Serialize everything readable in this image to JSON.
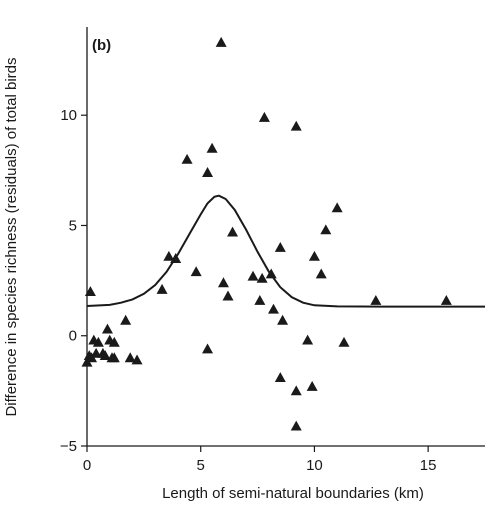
{
  "chart_data": {
    "type": "scatter",
    "panel_label": "(b)",
    "xlabel": "Length of semi-natural boundaries  (km)",
    "ylabel": "Difference in species richness (residuals) of total birds",
    "xlim": [
      0,
      17.5
    ],
    "ylim": [
      -5,
      14
    ],
    "xticks": [
      0,
      5,
      10,
      15
    ],
    "yticks": [
      -5,
      0,
      5,
      10
    ],
    "grid": false,
    "legend": "none",
    "marker": "triangle",
    "colors": {
      "marker": "#1a1a1a",
      "curve": "#1a1a1a",
      "axis": "#1a1a1a"
    },
    "points": [
      {
        "x": 0.0,
        "y": -1.2
      },
      {
        "x": 0.1,
        "y": -0.9
      },
      {
        "x": 0.15,
        "y": 2.0
      },
      {
        "x": 0.2,
        "y": -1.0
      },
      {
        "x": 0.3,
        "y": -0.2
      },
      {
        "x": 0.4,
        "y": -0.8
      },
      {
        "x": 0.5,
        "y": -0.3
      },
      {
        "x": 0.7,
        "y": -0.8
      },
      {
        "x": 0.8,
        "y": -0.9
      },
      {
        "x": 0.9,
        "y": 0.3
      },
      {
        "x": 1.0,
        "y": -0.2
      },
      {
        "x": 1.1,
        "y": -1.0
      },
      {
        "x": 1.2,
        "y": -1.0
      },
      {
        "x": 1.2,
        "y": -0.3
      },
      {
        "x": 1.7,
        "y": 0.7
      },
      {
        "x": 1.9,
        "y": -1.0
      },
      {
        "x": 2.2,
        "y": -1.1
      },
      {
        "x": 3.3,
        "y": 2.1
      },
      {
        "x": 3.6,
        "y": 3.6
      },
      {
        "x": 3.9,
        "y": 3.5
      },
      {
        "x": 4.4,
        "y": 8.0
      },
      {
        "x": 4.8,
        "y": 2.9
      },
      {
        "x": 5.3,
        "y": -0.6
      },
      {
        "x": 5.3,
        "y": 7.4
      },
      {
        "x": 5.5,
        "y": 8.5
      },
      {
        "x": 5.9,
        "y": 13.3
      },
      {
        "x": 6.0,
        "y": 2.4
      },
      {
        "x": 6.2,
        "y": 1.8
      },
      {
        "x": 6.4,
        "y": 4.7
      },
      {
        "x": 7.3,
        "y": 2.7
      },
      {
        "x": 7.6,
        "y": 1.6
      },
      {
        "x": 7.7,
        "y": 2.6
      },
      {
        "x": 7.8,
        "y": 9.9
      },
      {
        "x": 8.1,
        "y": 2.8
      },
      {
        "x": 8.2,
        "y": 1.2
      },
      {
        "x": 8.5,
        "y": 4.0
      },
      {
        "x": 8.5,
        "y": -1.9
      },
      {
        "x": 8.6,
        "y": 0.7
      },
      {
        "x": 9.2,
        "y": 9.5
      },
      {
        "x": 9.2,
        "y": -2.5
      },
      {
        "x": 9.2,
        "y": -4.1
      },
      {
        "x": 9.7,
        "y": -0.2
      },
      {
        "x": 9.9,
        "y": -2.3
      },
      {
        "x": 10.0,
        "y": 3.6
      },
      {
        "x": 10.3,
        "y": 2.8
      },
      {
        "x": 10.5,
        "y": 4.8
      },
      {
        "x": 11.0,
        "y": 5.8
      },
      {
        "x": 11.3,
        "y": -0.3
      },
      {
        "x": 12.7,
        "y": 1.6
      },
      {
        "x": 15.8,
        "y": 1.6
      }
    ],
    "curve": [
      {
        "x": 0.0,
        "y": 1.35
      },
      {
        "x": 1.0,
        "y": 1.4
      },
      {
        "x": 1.5,
        "y": 1.5
      },
      {
        "x": 2.0,
        "y": 1.65
      },
      {
        "x": 2.5,
        "y": 1.9
      },
      {
        "x": 3.0,
        "y": 2.3
      },
      {
        "x": 3.5,
        "y": 2.9
      },
      {
        "x": 4.0,
        "y": 3.7
      },
      {
        "x": 4.5,
        "y": 4.6
      },
      {
        "x": 5.0,
        "y": 5.5
      },
      {
        "x": 5.3,
        "y": 6.0
      },
      {
        "x": 5.6,
        "y": 6.3
      },
      {
        "x": 5.8,
        "y": 6.35
      },
      {
        "x": 6.1,
        "y": 6.2
      },
      {
        "x": 6.5,
        "y": 5.7
      },
      {
        "x": 7.0,
        "y": 4.8
      },
      {
        "x": 7.5,
        "y": 3.8
      },
      {
        "x": 8.0,
        "y": 2.9
      },
      {
        "x": 8.5,
        "y": 2.2
      },
      {
        "x": 9.0,
        "y": 1.75
      },
      {
        "x": 9.5,
        "y": 1.5
      },
      {
        "x": 10.0,
        "y": 1.38
      },
      {
        "x": 11.0,
        "y": 1.33
      },
      {
        "x": 13.0,
        "y": 1.32
      },
      {
        "x": 17.5,
        "y": 1.32
      }
    ]
  }
}
